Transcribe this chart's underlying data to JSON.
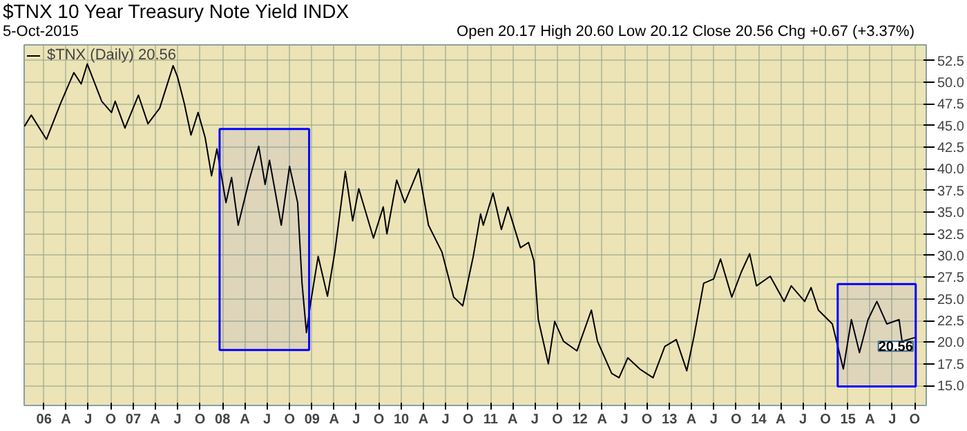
{
  "chart_data": {
    "type": "line",
    "title": "$TNX 10 Year Treasury Note Yield INDX",
    "subtitle": "5-Oct-2015",
    "annotations": [
      "Open 20.17 High 20.60 Low 20.12 Close 20.56 Chg +0.67 (+3.37%)",
      {
        "text": "20.56",
        "x": "2015-10-05",
        "y": 20.56
      }
    ],
    "x": [
      "2005-10-13",
      "2005-11-10",
      "2006-01-11",
      "2006-03-09",
      "2006-05-03",
      "2006-06-02",
      "2006-06-27",
      "2006-08-25",
      "2006-10-04",
      "2006-10-19",
      "2006-11-28",
      "2007-01-22",
      "2007-03-02",
      "2007-04-19",
      "2007-06-13",
      "2007-07-01",
      "2007-07-29",
      "2007-08-25",
      "2007-09-23",
      "2007-10-22",
      "2007-11-17",
      "2007-12-09",
      "2008-01-15",
      "2008-02-07",
      "2008-03-05",
      "2008-04-19",
      "2008-05-28",
      "2008-06-23",
      "2008-07-11",
      "2008-08-28",
      "2008-10-01",
      "2008-11-03",
      "2008-11-21",
      "2008-12-09",
      "2008-12-27",
      "2009-01-26",
      "2009-03-05",
      "2009-04-04",
      "2009-05-17",
      "2009-06-16",
      "2009-07-11",
      "2009-09-09",
      "2009-10-19",
      "2009-11-03",
      "2009-12-13",
      "2010-01-15",
      "2010-03-13",
      "2010-04-22",
      "2010-06-16",
      "2010-08-03",
      "2010-09-09",
      "2010-10-22",
      "2010-11-21",
      "2010-12-02",
      "2011-01-11",
      "2011-02-14",
      "2011-03-13",
      "2011-05-03",
      "2011-06-05",
      "2011-06-27",
      "2011-07-15",
      "2011-08-25",
      "2011-09-20",
      "2011-10-26",
      "2011-12-20",
      "2012-02-17",
      "2012-03-13",
      "2012-05-10",
      "2012-06-09",
      "2012-07-15",
      "2012-09-02",
      "2012-10-26",
      "2012-12-13",
      "2013-01-29",
      "2013-03-13",
      "2013-04-11",
      "2013-05-21",
      "2013-07-01",
      "2013-07-29",
      "2013-09-13",
      "2013-10-22",
      "2013-11-25",
      "2013-12-23",
      "2014-02-17",
      "2014-04-15",
      "2014-05-14",
      "2014-07-08",
      "2014-08-03",
      "2014-09-02",
      "2014-10-29",
      "2014-12-13",
      "2015-01-15",
      "2015-02-17",
      "2015-03-24",
      "2015-04-29",
      "2015-06-09",
      "2015-07-29",
      "2015-08-10",
      "2015-10-05"
    ],
    "series": [
      {
        "name": "$TNX (Daily) 20.56",
        "color": "#000000",
        "values": [
          44.9,
          46.2,
          43.4,
          47.5,
          51.1,
          49.8,
          52.1,
          47.8,
          46.5,
          47.8,
          44.7,
          48.5,
          45.2,
          47.0,
          51.9,
          50.6,
          47.5,
          43.9,
          46.5,
          43.6,
          39.2,
          42.3,
          36.1,
          39.0,
          33.5,
          38.7,
          42.6,
          38.2,
          41.0,
          33.5,
          40.3,
          36.1,
          26.8,
          21.1,
          24.7,
          29.9,
          25.3,
          30.4,
          39.7,
          34.0,
          37.7,
          32.0,
          35.6,
          32.5,
          38.7,
          36.1,
          40.0,
          33.5,
          30.4,
          25.2,
          24.2,
          29.9,
          34.8,
          33.5,
          37.2,
          33.0,
          35.6,
          30.9,
          31.5,
          29.4,
          22.6,
          17.5,
          22.4,
          20.1,
          19.0,
          23.7,
          20.1,
          16.4,
          15.9,
          18.2,
          16.9,
          15.9,
          19.5,
          20.3,
          16.7,
          20.6,
          26.8,
          27.3,
          29.6,
          25.2,
          28.1,
          30.2,
          26.5,
          27.6,
          24.7,
          26.5,
          24.7,
          26.3,
          23.7,
          22.1,
          16.9,
          22.6,
          18.8,
          22.6,
          24.7,
          22.1,
          22.6,
          20.1,
          20.56
        ]
      }
    ],
    "xlim": [
      "2005-10-12",
      "2015-11-17"
    ],
    "xticks": [
      {
        "value": "2006-01-01",
        "label": "06"
      },
      {
        "value": "2006-04-01",
        "label": "A"
      },
      {
        "value": "2006-07-01",
        "label": "J"
      },
      {
        "value": "2006-10-01",
        "label": "O"
      },
      {
        "value": "2007-01-01",
        "label": "07"
      },
      {
        "value": "2007-04-01",
        "label": "A"
      },
      {
        "value": "2007-07-01",
        "label": "J"
      },
      {
        "value": "2007-10-01",
        "label": "O"
      },
      {
        "value": "2008-01-01",
        "label": "08"
      },
      {
        "value": "2008-04-01",
        "label": "A"
      },
      {
        "value": "2008-07-01",
        "label": "J"
      },
      {
        "value": "2008-10-01",
        "label": "O"
      },
      {
        "value": "2009-01-01",
        "label": "09"
      },
      {
        "value": "2009-04-01",
        "label": "A"
      },
      {
        "value": "2009-07-01",
        "label": "J"
      },
      {
        "value": "2009-10-01",
        "label": "O"
      },
      {
        "value": "2010-01-01",
        "label": "10"
      },
      {
        "value": "2010-04-01",
        "label": "A"
      },
      {
        "value": "2010-07-01",
        "label": "J"
      },
      {
        "value": "2010-10-01",
        "label": "O"
      },
      {
        "value": "2011-01-01",
        "label": "11"
      },
      {
        "value": "2011-04-01",
        "label": "A"
      },
      {
        "value": "2011-07-01",
        "label": "J"
      },
      {
        "value": "2011-10-01",
        "label": "O"
      },
      {
        "value": "2012-01-01",
        "label": "12"
      },
      {
        "value": "2012-04-01",
        "label": "A"
      },
      {
        "value": "2012-07-01",
        "label": "J"
      },
      {
        "value": "2012-10-01",
        "label": "O"
      },
      {
        "value": "2013-01-01",
        "label": "13"
      },
      {
        "value": "2013-04-01",
        "label": "A"
      },
      {
        "value": "2013-07-01",
        "label": "J"
      },
      {
        "value": "2013-10-01",
        "label": "O"
      },
      {
        "value": "2014-01-01",
        "label": "14"
      },
      {
        "value": "2014-04-01",
        "label": "A"
      },
      {
        "value": "2014-07-01",
        "label": "J"
      },
      {
        "value": "2014-10-01",
        "label": "O"
      },
      {
        "value": "2015-01-01",
        "label": "15"
      },
      {
        "value": "2015-04-01",
        "label": "A"
      },
      {
        "value": "2015-07-01",
        "label": "J"
      },
      {
        "value": "2015-10-01",
        "label": "O"
      }
    ],
    "ylim": [
      12.7,
      54.3
    ],
    "yticks": [
      {
        "value": 15,
        "label": "15.0"
      },
      {
        "value": 17.5,
        "label": "17.5"
      },
      {
        "value": 20,
        "label": "20.0"
      },
      {
        "value": 22.5,
        "label": "22.5"
      },
      {
        "value": 25,
        "label": "25.0"
      },
      {
        "value": 27.5,
        "label": "27.5"
      },
      {
        "value": 30,
        "label": "30.0"
      },
      {
        "value": 32.5,
        "label": "32.5"
      },
      {
        "value": 35,
        "label": "35.0"
      },
      {
        "value": 37.5,
        "label": "37.5"
      },
      {
        "value": 40,
        "label": "40.0"
      },
      {
        "value": 42.5,
        "label": "42.5"
      },
      {
        "value": 45,
        "label": "45.0"
      },
      {
        "value": 47.5,
        "label": "47.5"
      },
      {
        "value": 50,
        "label": "50.0"
      },
      {
        "value": 52.5,
        "label": "52.5"
      }
    ],
    "bands": [
      {
        "axis": "x",
        "from": "2007-12-20",
        "to": "2008-12-20",
        "color": "#0000ff"
      },
      {
        "axis": "x",
        "from": "2014-11-20",
        "to": "2015-10-05",
        "color": "#0000ff"
      }
    ],
    "grid": true,
    "legend": "top left",
    "marker": "none",
    "line_style": "solid"
  }
}
